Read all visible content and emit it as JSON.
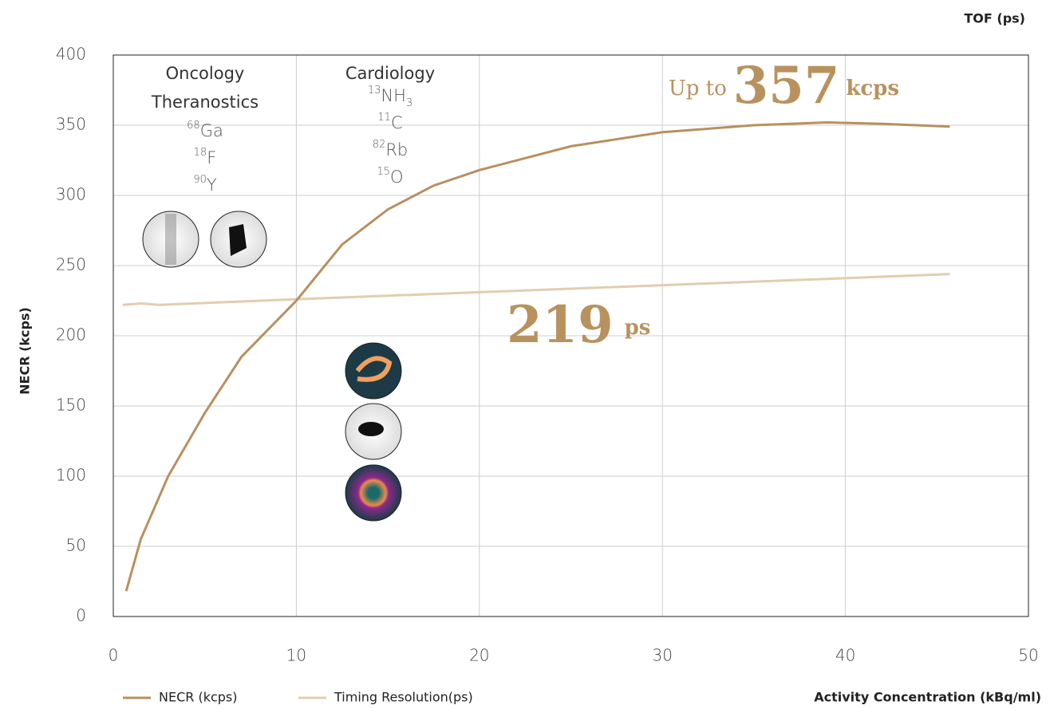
{
  "chart_data": {
    "type": "line",
    "x_label": "Activity Concentration (kBq/ml)",
    "y_label": "NECR (kcps)",
    "y2_label": "TOF (ps)",
    "xlim": [
      0,
      50
    ],
    "xticks": [
      0,
      10,
      20,
      30,
      40,
      50
    ],
    "ylim": [
      0,
      400
    ],
    "yticks": [
      0,
      50,
      100,
      150,
      200,
      250,
      300,
      350,
      400
    ],
    "y2lim": [
      0,
      400
    ],
    "grid": true,
    "legend": "bottom",
    "series": [
      {
        "name": "NECR (kcps)",
        "color": "#b8905f",
        "x": [
          0.7,
          1.5,
          3,
          5,
          7,
          10,
          12.5,
          15,
          17.5,
          20,
          25,
          30,
          35,
          39,
          42,
          45.7
        ],
        "values": [
          18,
          55,
          100,
          145,
          185,
          225,
          265,
          290,
          307,
          318,
          335,
          345,
          350,
          352,
          351,
          349
        ]
      },
      {
        "name": "Timing Resolution(ps)",
        "color": "#e2cdb0",
        "axis": "y2",
        "x": [
          0.5,
          1.5,
          2.5,
          10,
          20,
          30,
          40,
          45.7
        ],
        "values": [
          222,
          223,
          222,
          226,
          231,
          236,
          241,
          244
        ]
      }
    ],
    "annotations": {
      "oncology": {
        "lines": [
          "Oncology",
          "Theranostics"
        ],
        "isotopes": [
          {
            "mass": "68",
            "symbol": "Ga"
          },
          {
            "mass": "18",
            "symbol": "F"
          },
          {
            "mass": "90",
            "symbol": "Y"
          }
        ]
      },
      "cardiology": {
        "lines": [
          "Cardiology"
        ],
        "isotopes": [
          {
            "mass": "13",
            "symbol": "NH",
            "sub": "3"
          },
          {
            "mass": "11",
            "symbol": "C"
          },
          {
            "mass": "82",
            "symbol": "Rb"
          },
          {
            "mass": "15",
            "symbol": "O"
          }
        ]
      },
      "peak": {
        "prefix": "Up to",
        "value": 357,
        "unit": "kcps"
      },
      "tof": {
        "value": 219,
        "unit": "ps"
      }
    }
  }
}
